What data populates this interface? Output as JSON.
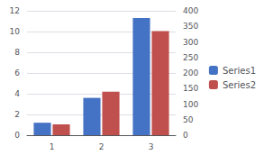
{
  "chart_data": {
    "type": "bar",
    "categories": [
      "1",
      "2",
      "3"
    ],
    "series": [
      {
        "name": "Series1",
        "color": "#4472C4",
        "values": [
          1.2,
          3.6,
          11.3
        ]
      },
      {
        "name": "Series2",
        "color": "#C0504D",
        "values": [
          35,
          140,
          335
        ],
        "axis": "y2"
      }
    ],
    "ylim": [
      0,
      12
    ],
    "yticks": [
      0,
      2,
      4,
      6,
      8,
      10,
      12
    ],
    "y2lim": [
      0,
      400
    ],
    "y2ticks": [
      0,
      50,
      100,
      150,
      200,
      250,
      300,
      350,
      400
    ],
    "grid": true,
    "legend": "right"
  }
}
